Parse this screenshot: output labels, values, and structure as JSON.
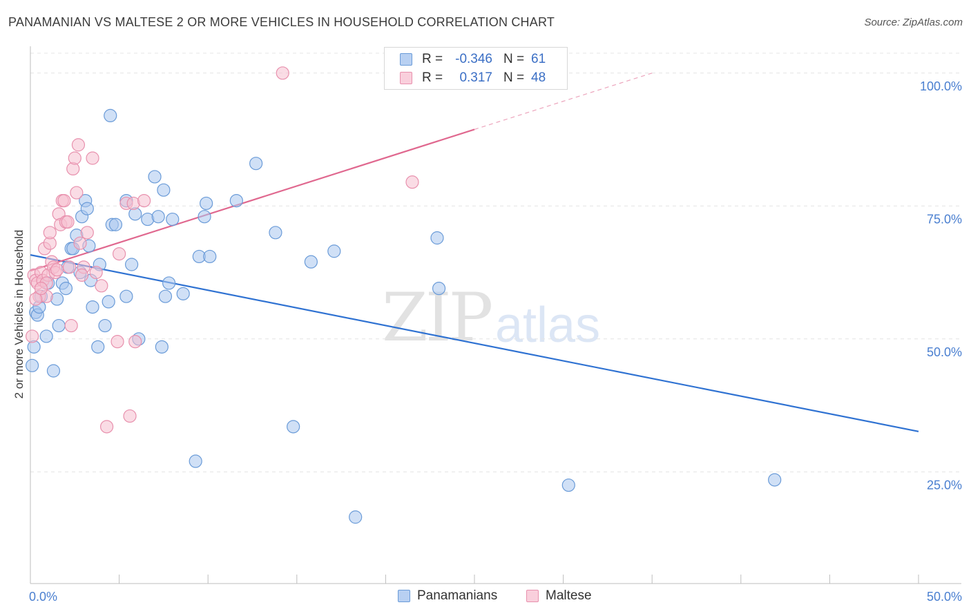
{
  "header": {
    "title": "PANAMANIAN VS MALTESE 2 OR MORE VEHICLES IN HOUSEHOLD CORRELATION CHART",
    "source": "Source: ZipAtlas.com"
  },
  "watermark": {
    "zip": "ZIP",
    "atlas": "atlas"
  },
  "legend": {
    "r_label": "R =",
    "n_label": "N =",
    "panamanians": {
      "r": "-0.346",
      "n": "61"
    },
    "maltese": {
      "r": "0.317",
      "n": "48"
    }
  },
  "bottom_legend": {
    "panamanians": "Panamanians",
    "maltese": "Maltese"
  },
  "colors": {
    "panamanians_fill": "#a9c7ef",
    "panamanians_stroke": "#6a9bd8",
    "panamanians_line": "#2f72d2",
    "maltese_fill": "#f6c0d0",
    "maltese_stroke": "#e890ad",
    "maltese_line": "#e0688f",
    "tick_text": "#4a7fd0"
  },
  "chart_data": {
    "type": "scatter",
    "title": "PANAMANIAN VS MALTESE 2 OR MORE VEHICLES IN HOUSEHOLD CORRELATION CHART",
    "xlabel": "",
    "ylabel": "2 or more Vehicles in Household",
    "xlim": [
      0,
      50
    ],
    "ylim": [
      4,
      104
    ],
    "x_tick_labels": [
      {
        "value": 0,
        "label": "0.0%"
      },
      {
        "value": 50,
        "label": "50.0%"
      }
    ],
    "y_tick_labels": [
      {
        "value": 100,
        "label": "100.0%"
      },
      {
        "value": 75,
        "label": "75.0%"
      },
      {
        "value": 50,
        "label": "50.0%"
      },
      {
        "value": 25,
        "label": "25.0%"
      }
    ],
    "series": [
      {
        "name": "Panamanians",
        "points": [
          [
            0.2,
            48.5
          ],
          [
            0.3,
            55.0
          ],
          [
            0.4,
            54.5
          ],
          [
            0.5,
            56.0
          ],
          [
            0.6,
            58.0
          ],
          [
            0.9,
            50.5
          ],
          [
            1.0,
            60.5
          ],
          [
            1.3,
            44.0
          ],
          [
            1.6,
            52.5
          ],
          [
            1.8,
            60.5
          ],
          [
            2.0,
            59.5
          ],
          [
            2.1,
            63.5
          ],
          [
            2.3,
            67.0
          ],
          [
            2.4,
            67.0
          ],
          [
            2.6,
            69.5
          ],
          [
            2.8,
            62.5
          ],
          [
            2.9,
            73.0
          ],
          [
            3.1,
            76.0
          ],
          [
            3.2,
            74.5
          ],
          [
            3.3,
            67.5
          ],
          [
            3.4,
            61.0
          ],
          [
            3.5,
            56.0
          ],
          [
            3.8,
            48.5
          ],
          [
            3.9,
            64.0
          ],
          [
            4.2,
            52.5
          ],
          [
            4.4,
            57.0
          ],
          [
            4.5,
            92.0
          ],
          [
            4.6,
            71.5
          ],
          [
            4.8,
            71.5
          ],
          [
            5.4,
            76.0
          ],
          [
            5.4,
            58.0
          ],
          [
            5.7,
            64.0
          ],
          [
            5.9,
            73.5
          ],
          [
            6.1,
            50.0
          ],
          [
            6.6,
            72.5
          ],
          [
            7.0,
            80.5
          ],
          [
            7.2,
            73.0
          ],
          [
            7.4,
            48.5
          ],
          [
            7.5,
            78.0
          ],
          [
            7.6,
            58.0
          ],
          [
            7.8,
            60.5
          ],
          [
            8.0,
            72.5
          ],
          [
            8.6,
            58.5
          ],
          [
            9.3,
            27.0
          ],
          [
            9.5,
            65.5
          ],
          [
            9.8,
            73.0
          ],
          [
            9.9,
            75.5
          ],
          [
            10.1,
            65.5
          ],
          [
            11.6,
            76.0
          ],
          [
            12.7,
            83.0
          ],
          [
            13.8,
            70.0
          ],
          [
            14.8,
            33.5
          ],
          [
            15.8,
            64.5
          ],
          [
            17.1,
            66.5
          ],
          [
            18.3,
            16.5
          ],
          [
            22.9,
            69.0
          ],
          [
            23.0,
            59.5
          ],
          [
            30.3,
            22.5
          ],
          [
            41.9,
            23.5
          ],
          [
            0.1,
            45.0
          ],
          [
            1.5,
            57.5
          ]
        ],
        "trend": {
          "x": [
            0,
            50
          ],
          "y": [
            65.8,
            32.6
          ]
        }
      },
      {
        "name": "Maltese",
        "points": [
          [
            0.1,
            50.5
          ],
          [
            0.2,
            62.0
          ],
          [
            0.3,
            61.0
          ],
          [
            0.4,
            60.5
          ],
          [
            0.5,
            58.0
          ],
          [
            0.6,
            62.5
          ],
          [
            0.7,
            61.0
          ],
          [
            0.8,
            67.0
          ],
          [
            0.9,
            58.0
          ],
          [
            1.0,
            62.0
          ],
          [
            1.1,
            68.0
          ],
          [
            1.2,
            64.5
          ],
          [
            1.3,
            63.5
          ],
          [
            1.4,
            62.5
          ],
          [
            1.6,
            73.5
          ],
          [
            1.7,
            71.5
          ],
          [
            1.8,
            76.0
          ],
          [
            2.0,
            72.0
          ],
          [
            2.1,
            72.0
          ],
          [
            2.2,
            63.5
          ],
          [
            2.3,
            52.5
          ],
          [
            2.4,
            82.0
          ],
          [
            2.5,
            84.0
          ],
          [
            2.6,
            77.5
          ],
          [
            2.7,
            86.5
          ],
          [
            2.8,
            68.0
          ],
          [
            3.0,
            63.5
          ],
          [
            3.2,
            70.0
          ],
          [
            3.5,
            84.0
          ],
          [
            3.7,
            62.5
          ],
          [
            4.0,
            60.0
          ],
          [
            4.3,
            33.5
          ],
          [
            4.9,
            49.5
          ],
          [
            5.0,
            66.0
          ],
          [
            5.4,
            75.5
          ],
          [
            5.6,
            35.5
          ],
          [
            5.8,
            75.5
          ],
          [
            5.9,
            49.5
          ],
          [
            6.4,
            76.0
          ],
          [
            14.2,
            100.0
          ],
          [
            21.5,
            79.5
          ],
          [
            0.3,
            57.5
          ],
          [
            0.9,
            60.5
          ],
          [
            1.5,
            63.0
          ],
          [
            1.1,
            70.0
          ],
          [
            2.9,
            62.0
          ],
          [
            1.9,
            76.0
          ],
          [
            0.6,
            59.5
          ]
        ],
        "trend": {
          "x": [
            0,
            25
          ],
          "y": [
            62.8,
            89.4
          ],
          "dashed_to": {
            "x": 35,
            "y": 100
          }
        }
      }
    ]
  }
}
